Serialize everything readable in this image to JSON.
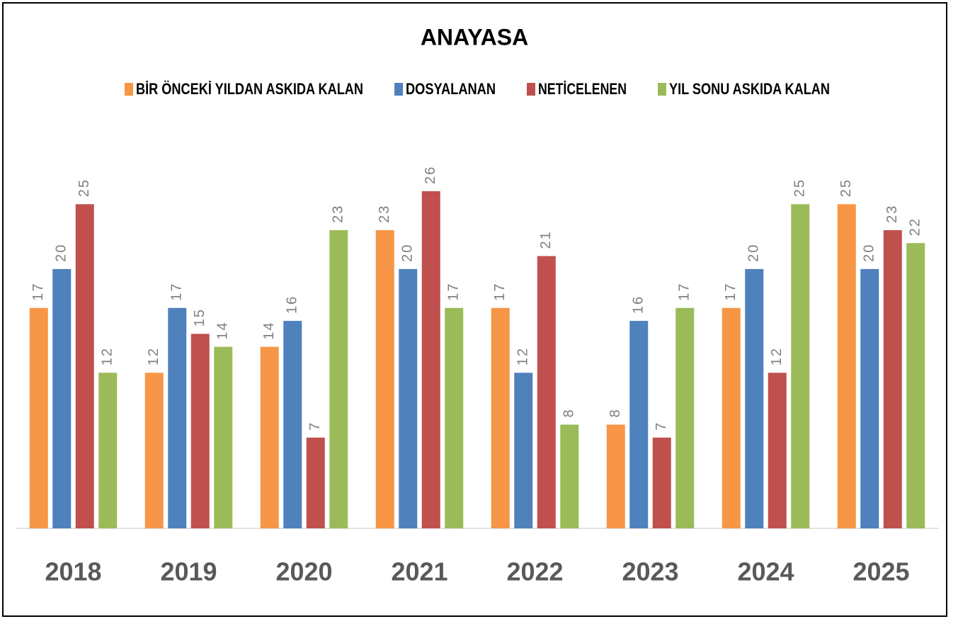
{
  "chart_data": {
    "type": "bar",
    "title": "ANAYASA",
    "categories": [
      "2018",
      "2019",
      "2020",
      "2021",
      "2022",
      "2023",
      "2024",
      "2025"
    ],
    "series": [
      {
        "name": "BİR ÖNCEKİ YILDAN ASKIDA KALAN",
        "color": "#f79646",
        "values": [
          17,
          12,
          14,
          23,
          17,
          8,
          17,
          25
        ]
      },
      {
        "name": "DOSYALANAN",
        "color": "#4f81bd",
        "values": [
          20,
          17,
          16,
          20,
          12,
          16,
          20,
          20
        ]
      },
      {
        "name": "NETİCELENEN",
        "color": "#c0504d",
        "values": [
          25,
          15,
          7,
          26,
          21,
          7,
          12,
          23
        ]
      },
      {
        "name": "YIL SONU ASKIDA KALAN",
        "color": "#9bbb59",
        "values": [
          12,
          14,
          23,
          17,
          8,
          17,
          25,
          22
        ]
      }
    ]
  }
}
